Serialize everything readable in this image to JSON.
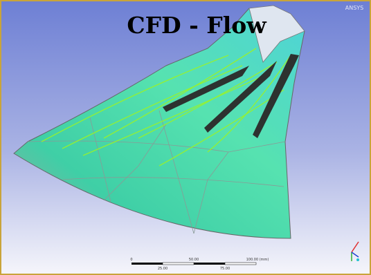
{
  "title": "CFD - Flow",
  "logo": "ANSYS",
  "scale_bar": {
    "labels": [
      "0",
      "50.00",
      "100.00 (mm)"
    ],
    "sub_labels": [
      "25.00",
      "75.00"
    ]
  }
}
